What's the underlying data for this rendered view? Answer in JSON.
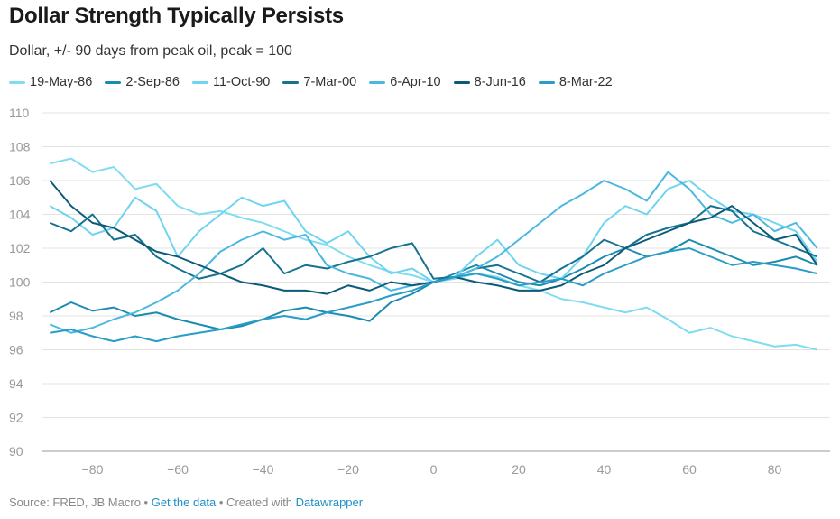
{
  "title": "Dollar Strength Typically Persists",
  "subtitle": "Dollar, +/- 90 days from peak oil, peak = 100",
  "footer": {
    "source": "Source: FRED, JB Macro",
    "sep1": " • ",
    "get_data": "Get the data",
    "sep2": " • Created with ",
    "datawrapper": "Datawrapper"
  },
  "chart_data": {
    "type": "line",
    "title": "Dollar Strength Typically Persists",
    "subtitle": "Dollar, +/- 90 days from peak oil, peak = 100",
    "xlabel": "",
    "ylabel": "",
    "xlim": [
      -90,
      90
    ],
    "ylim": [
      90,
      110
    ],
    "x_ticks": [
      "−80",
      "−60",
      "−40",
      "−20",
      "0",
      "20",
      "40",
      "60",
      "80"
    ],
    "x_tick_values": [
      -80,
      -60,
      -40,
      -20,
      0,
      20,
      40,
      60,
      80
    ],
    "y_ticks": [
      "110",
      "108",
      "106",
      "104",
      "102",
      "100",
      "98",
      "96",
      "94",
      "92",
      "90"
    ],
    "y_tick_values": [
      110,
      108,
      106,
      104,
      102,
      100,
      98,
      96,
      94,
      92,
      90
    ],
    "grid": true,
    "legend_position": "top",
    "x": [
      -90,
      -85,
      -80,
      -75,
      -70,
      -65,
      -60,
      -55,
      -50,
      -45,
      -40,
      -35,
      -30,
      -25,
      -20,
      -15,
      -10,
      -5,
      0,
      5,
      10,
      15,
      20,
      25,
      30,
      35,
      40,
      45,
      50,
      55,
      60,
      65,
      70,
      75,
      80,
      85,
      90
    ],
    "series": [
      {
        "name": "19-May-86",
        "color": "#80dcf1",
        "values": [
          107,
          107.3,
          106.5,
          106.8,
          105.5,
          105.8,
          104.5,
          104,
          104.2,
          103.8,
          103.5,
          103,
          102.5,
          102.2,
          101.5,
          101,
          100.6,
          100.4,
          100,
          100.2,
          100.5,
          100.3,
          99.8,
          99.5,
          99,
          98.8,
          98.5,
          98.2,
          98.5,
          97.8,
          97,
          97.3,
          96.8,
          96.5,
          96.2,
          96.3,
          96
        ]
      },
      {
        "name": "2-Sep-86",
        "color": "#1b8bb0",
        "values": [
          98.2,
          98.8,
          98.3,
          98.5,
          98,
          98.2,
          97.8,
          97.5,
          97.2,
          97.4,
          97.8,
          98.3,
          98.5,
          98.2,
          98,
          97.7,
          98.8,
          99.3,
          100,
          100.5,
          101,
          100.5,
          100,
          99.8,
          100.2,
          100.8,
          101.5,
          102,
          101.5,
          101.8,
          102.5,
          102,
          101.5,
          101,
          101.2,
          101.5,
          101
        ]
      },
      {
        "name": "11-Oct-90",
        "color": "#6fd4f0",
        "values": [
          104.5,
          103.8,
          102.8,
          103.2,
          105,
          104.2,
          101.5,
          103,
          104,
          105,
          104.5,
          104.8,
          103,
          102.3,
          103,
          101.5,
          100.5,
          100.8,
          100,
          100.3,
          101.5,
          102.5,
          101,
          100.5,
          100.2,
          101.5,
          103.5,
          104.5,
          104,
          105.5,
          106,
          105,
          104.2,
          104,
          103.5,
          103,
          101.2
        ]
      },
      {
        "name": "7-Mar-00",
        "color": "#16728f",
        "values": [
          103.5,
          103,
          104,
          102.5,
          102.8,
          101.5,
          100.8,
          100.2,
          100.5,
          101,
          102,
          100.5,
          101,
          100.8,
          101.2,
          101.5,
          102,
          102.3,
          100.2,
          100.3,
          100.8,
          101,
          100.5,
          100,
          100.8,
          101.5,
          102.5,
          102,
          102.8,
          103.2,
          103.5,
          104.5,
          104.2,
          103,
          102.5,
          102,
          101.5
        ]
      },
      {
        "name": "6-Apr-10",
        "color": "#4bb8e0",
        "values": [
          97.5,
          97,
          97.3,
          97.8,
          98.2,
          98.8,
          99.5,
          100.5,
          101.8,
          102.5,
          103,
          102.5,
          102.8,
          101,
          100.5,
          100.2,
          99.5,
          99.8,
          100,
          100.3,
          100.8,
          101.5,
          102.5,
          103.5,
          104.5,
          105.2,
          106,
          105.5,
          104.8,
          106.5,
          105.5,
          104,
          103.5,
          104,
          103,
          103.5,
          102
        ]
      },
      {
        "name": "8-Jun-16",
        "color": "#0b5a78",
        "values": [
          106,
          104.5,
          103.5,
          103.2,
          102.5,
          101.8,
          101.5,
          101,
          100.5,
          100,
          99.8,
          99.5,
          99.5,
          99.3,
          99.8,
          99.5,
          100,
          99.8,
          100,
          100.3,
          100,
          99.8,
          99.5,
          99.5,
          99.8,
          100.5,
          101,
          102,
          102.5,
          103,
          103.5,
          103.8,
          104.5,
          103.5,
          102.5,
          102.8,
          101
        ]
      },
      {
        "name": "8-Mar-22",
        "color": "#2a9cc8",
        "values": [
          97,
          97.2,
          96.8,
          96.5,
          96.8,
          96.5,
          96.8,
          97,
          97.2,
          97.5,
          97.8,
          98,
          97.8,
          98.2,
          98.5,
          98.8,
          99.2,
          99.5,
          100,
          100.3,
          100.5,
          100.2,
          99.8,
          100,
          100.2,
          99.8,
          100.5,
          101,
          101.5,
          101.8,
          102,
          101.5,
          101,
          101.2,
          101,
          100.8,
          100.5
        ]
      }
    ]
  }
}
